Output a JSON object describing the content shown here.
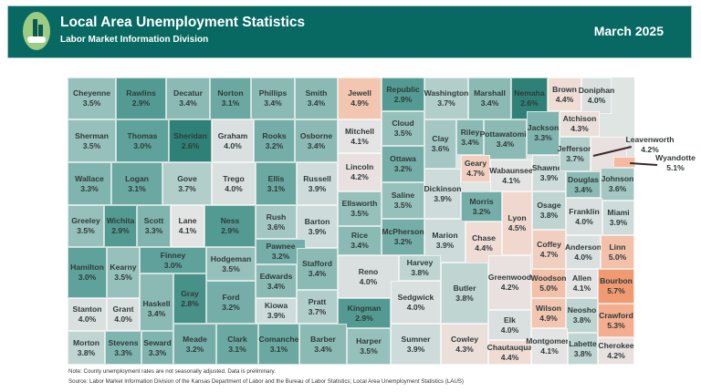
{
  "header": {
    "title": "Local Area Unemployment Statistics",
    "subtitle": "Labor Market Information Division",
    "date": "March 2025",
    "logo": "hand-with-bar-chart-logo",
    "bg_color": "#076962"
  },
  "color_scale": {
    "low": "#2f8178",
    "mid": "#e4e4e4",
    "high": "#f19a72"
  },
  "counties": [
    {
      "name": "Cheyenne",
      "rate": "3.5%"
    },
    {
      "name": "Rawlins",
      "rate": "2.9%"
    },
    {
      "name": "Decatur",
      "rate": "3.4%"
    },
    {
      "name": "Norton",
      "rate": "3.1%"
    },
    {
      "name": "Phillips",
      "rate": "3.4%"
    },
    {
      "name": "Smith",
      "rate": "3.4%"
    },
    {
      "name": "Jewell",
      "rate": "4.9%"
    },
    {
      "name": "Republic",
      "rate": "2.9%"
    },
    {
      "name": "Washington",
      "rate": "3.7%"
    },
    {
      "name": "Marshall",
      "rate": "3.4%"
    },
    {
      "name": "Nemaha",
      "rate": "2.6%"
    },
    {
      "name": "Brown",
      "rate": "4.4%"
    },
    {
      "name": "Doniphan",
      "rate": "4.0%"
    },
    {
      "name": "Sherman",
      "rate": "3.5%"
    },
    {
      "name": "Thomas",
      "rate": "3.0%"
    },
    {
      "name": "Sheridan",
      "rate": "2.6%"
    },
    {
      "name": "Graham",
      "rate": "4.0%"
    },
    {
      "name": "Rooks",
      "rate": "3.2%"
    },
    {
      "name": "Osborne",
      "rate": "3.4%"
    },
    {
      "name": "Mitchell",
      "rate": "4.1%"
    },
    {
      "name": "Cloud",
      "rate": "3.5%"
    },
    {
      "name": "Clay",
      "rate": "3.6%"
    },
    {
      "name": "Riley",
      "rate": "3.4%"
    },
    {
      "name": "Pottawatomie",
      "rate": "3.4%"
    },
    {
      "name": "Jackson",
      "rate": "3.3%"
    },
    {
      "name": "Atchison",
      "rate": "4.3%"
    },
    {
      "name": "Wallace",
      "rate": "3.3%"
    },
    {
      "name": "Logan",
      "rate": "3.1%"
    },
    {
      "name": "Gove",
      "rate": "3.7%"
    },
    {
      "name": "Trego",
      "rate": "4.0%"
    },
    {
      "name": "Ellis",
      "rate": "3.1%"
    },
    {
      "name": "Russell",
      "rate": "3.9%"
    },
    {
      "name": "Lincoln",
      "rate": "4.2%"
    },
    {
      "name": "Ottawa",
      "rate": "3.2%"
    },
    {
      "name": "Saline",
      "rate": "3.5%"
    },
    {
      "name": "Dickinson",
      "rate": "3.9%"
    },
    {
      "name": "Geary",
      "rate": "4.7%"
    },
    {
      "name": "Wabaunsee",
      "rate": "4.1%"
    },
    {
      "name": "Shawnee",
      "rate": "3.9%"
    },
    {
      "name": "Jefferson",
      "rate": "3.7%"
    },
    {
      "name": "Leavenworth",
      "rate": "4.2%"
    },
    {
      "name": "Wyandotte",
      "rate": "5.1%"
    },
    {
      "name": "Douglas",
      "rate": "3.4%"
    },
    {
      "name": "Johnson",
      "rate": "3.6%"
    },
    {
      "name": "Greeley",
      "rate": "3.5%"
    },
    {
      "name": "Wichita",
      "rate": "2.9%"
    },
    {
      "name": "Scott",
      "rate": "3.3%"
    },
    {
      "name": "Lane",
      "rate": "4.1%"
    },
    {
      "name": "Ness",
      "rate": "2.9%"
    },
    {
      "name": "Rush",
      "rate": "3.6%"
    },
    {
      "name": "Barton",
      "rate": "3.9%"
    },
    {
      "name": "Ellsworth",
      "rate": "3.5%"
    },
    {
      "name": "Rice",
      "rate": "3.4%"
    },
    {
      "name": "McPherson",
      "rate": "3.2%"
    },
    {
      "name": "Marion",
      "rate": "3.9%"
    },
    {
      "name": "Morris",
      "rate": "3.2%"
    },
    {
      "name": "Chase",
      "rate": "4.4%"
    },
    {
      "name": "Lyon",
      "rate": "4.5%"
    },
    {
      "name": "Osage",
      "rate": "3.8%"
    },
    {
      "name": "Franklin",
      "rate": "4.0%"
    },
    {
      "name": "Miami",
      "rate": "3.9%"
    },
    {
      "name": "Hamilton",
      "rate": "3.0%"
    },
    {
      "name": "Kearny",
      "rate": "3.5%"
    },
    {
      "name": "Finney",
      "rate": "3.0%"
    },
    {
      "name": "Hodgeman",
      "rate": "3.5%"
    },
    {
      "name": "Pawnee",
      "rate": "3.2%"
    },
    {
      "name": "Edwards",
      "rate": "3.4%"
    },
    {
      "name": "Stafford",
      "rate": "3.4%"
    },
    {
      "name": "Reno",
      "rate": "4.0%"
    },
    {
      "name": "Harvey",
      "rate": "3.8%"
    },
    {
      "name": "Butler",
      "rate": "3.8%"
    },
    {
      "name": "Greenwood",
      "rate": "4.2%"
    },
    {
      "name": "Coffey",
      "rate": "4.7%"
    },
    {
      "name": "Anderson",
      "rate": "4.0%"
    },
    {
      "name": "Linn",
      "rate": "5.0%"
    },
    {
      "name": "Woodson",
      "rate": "5.0%"
    },
    {
      "name": "Allen",
      "rate": "4.1%"
    },
    {
      "name": "Bourbon",
      "rate": "5.7%"
    },
    {
      "name": "Stanton",
      "rate": "4.0%"
    },
    {
      "name": "Grant",
      "rate": "4.0%"
    },
    {
      "name": "Haskell",
      "rate": "3.4%"
    },
    {
      "name": "Gray",
      "rate": "2.8%"
    },
    {
      "name": "Ford",
      "rate": "3.2%"
    },
    {
      "name": "Kiowa",
      "rate": "3.9%"
    },
    {
      "name": "Pratt",
      "rate": "3.7%"
    },
    {
      "name": "Kingman",
      "rate": "2.9%"
    },
    {
      "name": "Sedgwick",
      "rate": "4.0%"
    },
    {
      "name": "Elk",
      "rate": "4.0%"
    },
    {
      "name": "Wilson",
      "rate": "4.9%"
    },
    {
      "name": "Neosho",
      "rate": "3.8%"
    },
    {
      "name": "Crawford",
      "rate": "5.3%"
    },
    {
      "name": "Morton",
      "rate": "3.8%"
    },
    {
      "name": "Stevens",
      "rate": "3.3%"
    },
    {
      "name": "Seward",
      "rate": "3.3%"
    },
    {
      "name": "Meade",
      "rate": "3.2%"
    },
    {
      "name": "Clark",
      "rate": "3.1%"
    },
    {
      "name": "Comanche",
      "rate": "3.1%"
    },
    {
      "name": "Barber",
      "rate": "3.4%"
    },
    {
      "name": "Harper",
      "rate": "3.5%"
    },
    {
      "name": "Sumner",
      "rate": "3.9%"
    },
    {
      "name": "Cowley",
      "rate": "4.3%"
    },
    {
      "name": "Chautauqua",
      "rate": "4.4%"
    },
    {
      "name": "Montgomery",
      "rate": "4.1%"
    },
    {
      "name": "Labette",
      "rate": "3.8%"
    },
    {
      "name": "Cherokee",
      "rate": "4.2%"
    }
  ],
  "notes": {
    "note": "Note: County unemployment rates are not seasonally adjusted. Data is preliminary.",
    "source": "Source: Labor Market Information Division of the Kansas Department of Labor and the Bureau of Labor Statistics; Local Area Unemployment Statistics (LAUS)"
  }
}
